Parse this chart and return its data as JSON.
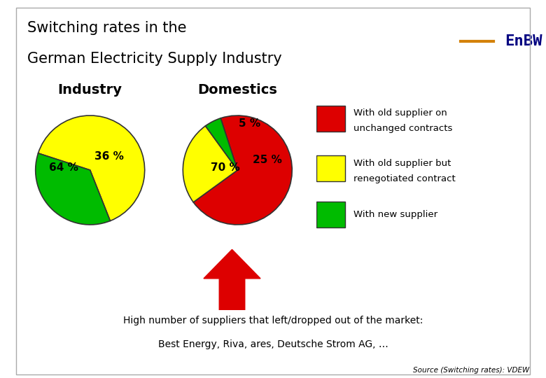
{
  "title_line1": "Switching rates in the",
  "title_line2": "German Electricity Supply Industry",
  "title_fontsize": 15,
  "bg_color": "#ffffff",
  "header_bg": "#ffffff",
  "content_bg": "#ffffff",
  "sidebar_bg": "#d8d8d8",
  "industry_label": "Industry",
  "domestics_label": "Domestics",
  "industry_values": [
    64,
    36
  ],
  "industry_colors": [
    "#ffff00",
    "#00bb00"
  ],
  "industry_labels": [
    "64 %",
    "36 %"
  ],
  "industry_startangle": 162,
  "domestics_values": [
    70,
    25,
    5
  ],
  "domestics_colors": [
    "#dd0000",
    "#ffff00",
    "#00bb00"
  ],
  "domestics_labels": [
    "70 %",
    "25 %",
    "5 %"
  ],
  "domestics_startangle": 108,
  "legend_items": [
    {
      "label": "With old supplier on\nunchanged contracts",
      "color": "#dd0000"
    },
    {
      "label": "With old supplier but\nrenegotiated contract",
      "color": "#ffff00"
    },
    {
      "label": "With new supplier",
      "color": "#00bb00"
    }
  ],
  "arrow_color": "#dd0000",
  "footnote_line1": "High number of suppliers that left/dropped out of the market:",
  "footnote_line2": "Best Energy, Riva, ares, Deutsche Strom AG, …",
  "source_text": "Source (Switching rates): VDEW",
  "enbw_text": "EnBW",
  "enbw_color": "#000080",
  "orange_line_color": "#d4820a"
}
